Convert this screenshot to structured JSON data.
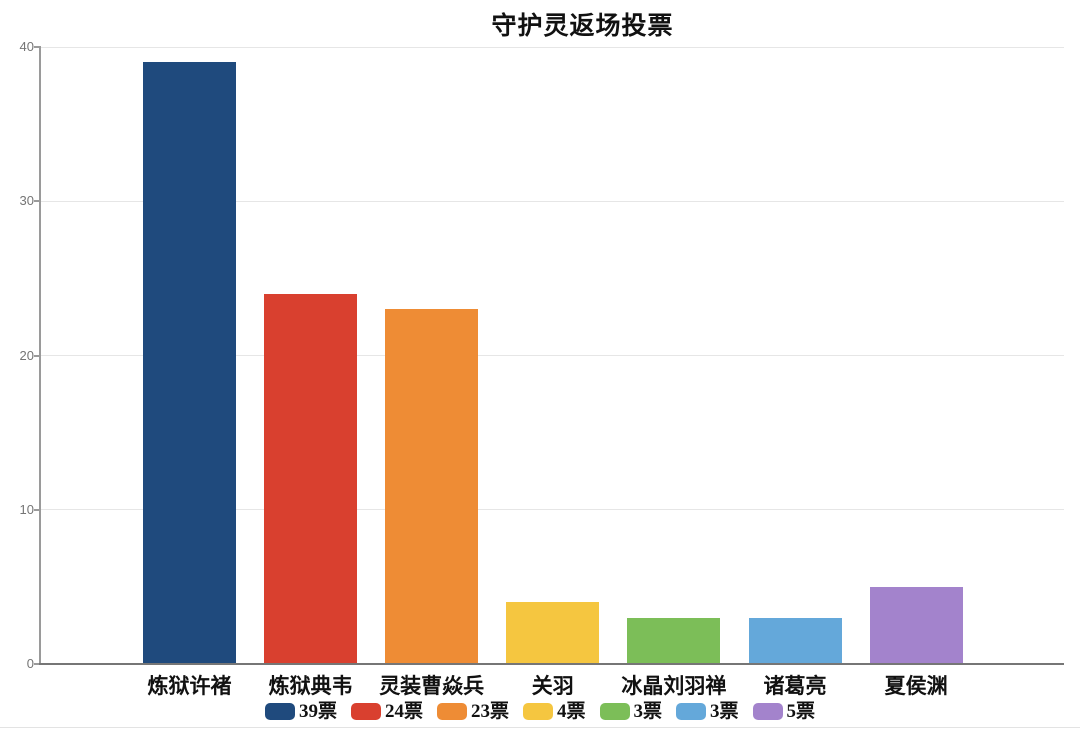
{
  "title": "守护灵返场投票",
  "chart_data": {
    "type": "bar",
    "title": "守护灵返场投票",
    "categories": [
      "炼狱许褚",
      "炼狱典韦",
      "灵装曹焱兵",
      "关羽",
      "冰晶刘羽禅",
      "诸葛亮",
      "夏侯渊"
    ],
    "values": [
      39,
      24,
      23,
      4,
      3,
      3,
      5
    ],
    "bar_colors": [
      "#1f4a7d",
      "#d9402f",
      "#ee8c35",
      "#f5c640",
      "#7cbe58",
      "#64a8da",
      "#a383cc"
    ],
    "legend_entries": [
      "39票",
      "24票",
      "23票",
      "4票",
      "3票",
      "3票",
      "5票"
    ],
    "legend_position": "bottom",
    "xlabel": "",
    "ylabel": "",
    "ylim": [
      0,
      40
    ],
    "yticks": [
      0,
      10,
      20,
      30,
      40
    ],
    "grid": true
  }
}
